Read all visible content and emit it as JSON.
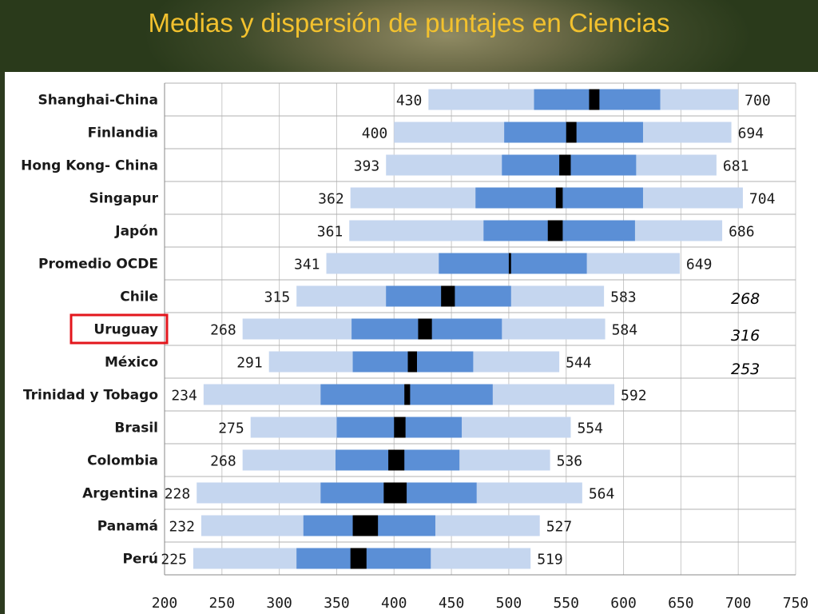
{
  "page": {
    "title": "Medias y dispersión de puntajes en Ciencias"
  },
  "chart_data": {
    "type": "bar",
    "subtype": "floating-range",
    "title": "Medias y dispersión de puntajes en Ciencias",
    "xlim": [
      200,
      750
    ],
    "x_ticks": [
      200,
      250,
      300,
      350,
      400,
      450,
      500,
      550,
      600,
      650,
      700,
      750
    ],
    "grid": "vertical",
    "colors": {
      "outer_range": "#c5d6ef",
      "inner_range": "#5b8fd6",
      "mean_marker": "#000000",
      "highlight_box": "#e3161c"
    },
    "series_description": [
      "min",
      "q_low",
      "mean_low",
      "mean_high",
      "q_high",
      "max"
    ],
    "categories": [
      "Shanghai-China",
      "Finlandia",
      "Hong Kong- China",
      "Singapur",
      "Japón",
      "Promedio OCDE",
      "Chile",
      "Uruguay",
      "México",
      "Trinidad y Tobago",
      "Brasil",
      "Colombia",
      "Argentina",
      "Panamá",
      "Perú"
    ],
    "min_labels": [
      "430",
      "400",
      "393",
      "362",
      "361",
      "341",
      "315",
      "268",
      "291",
      "234",
      "275",
      "268",
      "228",
      "232",
      "225"
    ],
    "max_labels": [
      "700",
      "694",
      "681",
      "704",
      "686",
      "649",
      "583",
      "584",
      "544",
      "592",
      "554",
      "536",
      "564",
      "527",
      "519"
    ],
    "ranges": [
      {
        "min": 430,
        "q1": 522,
        "mean_low": 570,
        "mean_high": 579,
        "q3": 632,
        "max": 700
      },
      {
        "min": 400,
        "q1": 496,
        "mean_low": 550,
        "mean_high": 559,
        "q3": 617,
        "max": 694
      },
      {
        "min": 393,
        "q1": 494,
        "mean_low": 544,
        "mean_high": 554,
        "q3": 611,
        "max": 681
      },
      {
        "min": 362,
        "q1": 471,
        "mean_low": 541,
        "mean_high": 547,
        "q3": 617,
        "max": 704
      },
      {
        "min": 361,
        "q1": 478,
        "mean_low": 534,
        "mean_high": 547,
        "q3": 610,
        "max": 686
      },
      {
        "min": 341,
        "q1": 439,
        "mean_low": 500,
        "mean_high": 502,
        "q3": 568,
        "max": 649
      },
      {
        "min": 315,
        "q1": 393,
        "mean_low": 441,
        "mean_high": 453,
        "q3": 502,
        "max": 583
      },
      {
        "min": 268,
        "q1": 363,
        "mean_low": 421,
        "mean_high": 433,
        "q3": 494,
        "max": 584
      },
      {
        "min": 291,
        "q1": 364,
        "mean_low": 412,
        "mean_high": 420,
        "q3": 469,
        "max": 544
      },
      {
        "min": 234,
        "q1": 336,
        "mean_low": 409,
        "mean_high": 414,
        "q3": 486,
        "max": 592
      },
      {
        "min": 275,
        "q1": 350,
        "mean_low": 400,
        "mean_high": 410,
        "q3": 459,
        "max": 554
      },
      {
        "min": 268,
        "q1": 349,
        "mean_low": 395,
        "mean_high": 409,
        "q3": 457,
        "max": 536
      },
      {
        "min": 228,
        "q1": 336,
        "mean_low": 391,
        "mean_high": 411,
        "q3": 472,
        "max": 564
      },
      {
        "min": 232,
        "q1": 321,
        "mean_low": 364,
        "mean_high": 386,
        "q3": 436,
        "max": 527
      },
      {
        "min": 225,
        "q1": 315,
        "mean_low": 362,
        "mean_high": 376,
        "q3": 432,
        "max": 519
      }
    ],
    "highlighted_category": "Uruguay",
    "side_annotations": [
      "268",
      "316",
      "253"
    ]
  }
}
